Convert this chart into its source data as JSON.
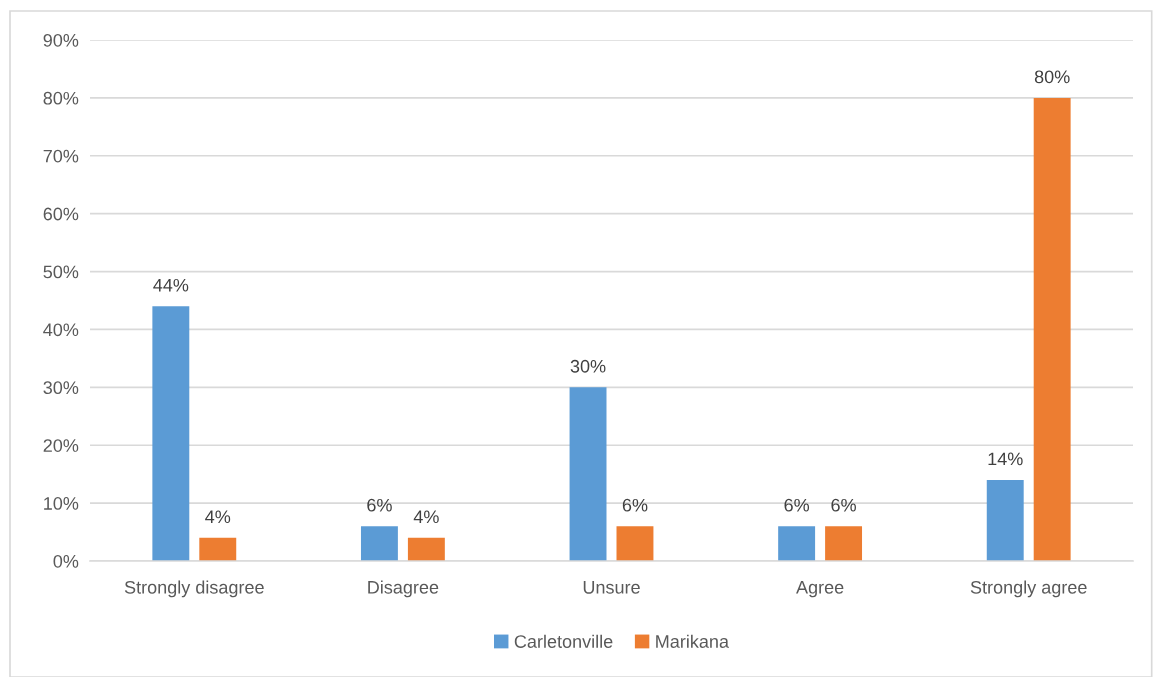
{
  "chart_data": {
    "type": "bar",
    "categories": [
      "Strongly disagree",
      "Disagree",
      "Unsure",
      "Agree",
      "Strongly agree"
    ],
    "series": [
      {
        "name": "Carletonville",
        "color": "#5b9bd5",
        "values": [
          44,
          6,
          30,
          6,
          14
        ],
        "value_labels": [
          "44%",
          "6%",
          "30%",
          "6%",
          "14%"
        ]
      },
      {
        "name": "Marikana",
        "color": "#ed7d31",
        "values": [
          4,
          4,
          6,
          6,
          80
        ],
        "value_labels": [
          "4%",
          "4%",
          "6%",
          "6%",
          "80%"
        ]
      }
    ],
    "ylim": [
      0,
      90
    ],
    "yticks": [
      {
        "value": 0,
        "label": "0%"
      },
      {
        "value": 10,
        "label": "10%"
      },
      {
        "value": 20,
        "label": "20%"
      },
      {
        "value": 30,
        "label": "30%"
      },
      {
        "value": 40,
        "label": "40%"
      },
      {
        "value": 50,
        "label": "50%"
      },
      {
        "value": 60,
        "label": "60%"
      },
      {
        "value": 70,
        "label": "70%"
      },
      {
        "value": 80,
        "label": "80%"
      },
      {
        "value": 90,
        "label": "90%"
      }
    ],
    "grid": "y",
    "legend": "bottom"
  }
}
